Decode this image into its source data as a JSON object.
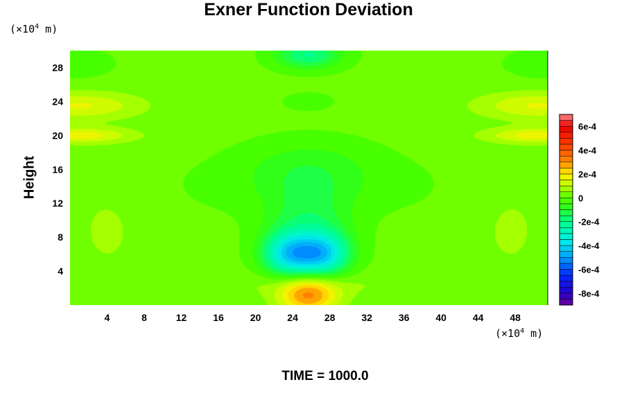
{
  "chart_data": {
    "type": "heatmap",
    "title": "Exner Function Deviation",
    "xlabel": "",
    "ylabel": "Height",
    "x_unit": "10^4 m",
    "y_unit": "10^4 m",
    "xlim": [
      0,
      51.5
    ],
    "ylim": [
      0,
      30
    ],
    "x_ticks": [
      4,
      8,
      12,
      16,
      20,
      24,
      28,
      32,
      36,
      40,
      44,
      48
    ],
    "y_ticks": [
      4,
      8,
      12,
      16,
      20,
      24,
      28
    ],
    "colorbar": {
      "range": [
        -0.0009,
        0.0007
      ],
      "ticks": [
        0.0006,
        0.0004,
        0.0002,
        0,
        -0.0002,
        -0.0004,
        -0.0006,
        -0.0008
      ],
      "tick_labels": [
        "6e-4",
        "4e-4",
        "2e-4",
        "0",
        "-2e-4",
        "-4e-4",
        "-6e-4",
        "-8e-4"
      ]
    },
    "features": [
      {
        "kind": "max",
        "x": 25.7,
        "y": 1.2,
        "value": 0.0003
      },
      {
        "kind": "min",
        "x": 23.6,
        "y": 6.0,
        "value": -0.00036
      },
      {
        "kind": "min",
        "x": 27.3,
        "y": 6.0,
        "value": -0.00036
      },
      {
        "kind": "min",
        "x": 25.7,
        "y": 29.5,
        "value": -0.00022
      },
      {
        "kind": "max",
        "x": 1.0,
        "y": 23.5,
        "value": 0.00014
      },
      {
        "kind": "max",
        "x": 50.5,
        "y": 23.5,
        "value": 0.00014
      },
      {
        "kind": "max",
        "x": 1.0,
        "y": 20.0,
        "value": 0.00016
      },
      {
        "kind": "max",
        "x": 50.5,
        "y": 20.0,
        "value": 0.00016
      }
    ]
  },
  "labels": {
    "unit_top": "(×10",
    "unit_exp": "4",
    "unit_tail": " m)",
    "time": "TIME = 1000.0"
  },
  "colors": {
    "background_field": "#55ff00",
    "text": "#000000"
  }
}
